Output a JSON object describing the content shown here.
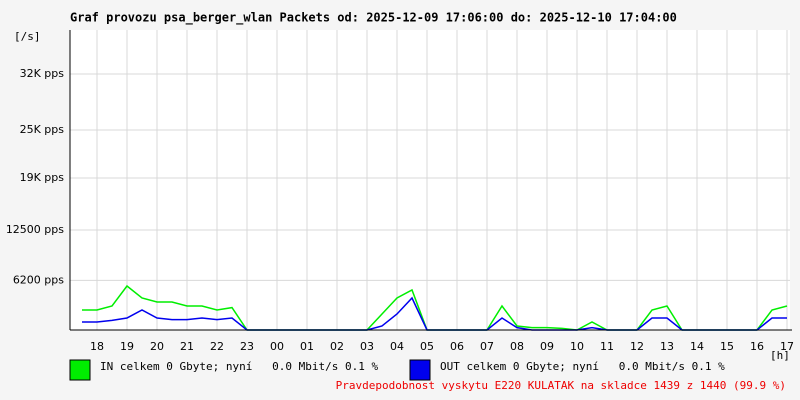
{
  "chart_data": {
    "type": "line",
    "title": "Graf provozu psa_berger_wlan Packets od: 2025-12-09 17:06:00 do: 2025-12-10 17:04:00",
    "y_label": "[/s]",
    "x_label": "[h]",
    "categories": [
      null,
      "18",
      null,
      "19",
      null,
      "20",
      null,
      "21",
      null,
      "22",
      null,
      "23",
      null,
      "00",
      null,
      "01",
      null,
      "02",
      null,
      "03",
      null,
      "04",
      null,
      "05",
      null,
      "06",
      null,
      "07",
      null,
      "08",
      null,
      "09",
      null,
      "10",
      null,
      "11",
      null,
      "12",
      null,
      "13",
      null,
      "14",
      null,
      "15",
      null,
      "16",
      null,
      "17"
    ],
    "series": [
      {
        "name": "IN celkem 0 Gbyte; nyní   0.0 Mbit/s 0.1 %",
        "color": "#00ee00",
        "values": [
          2500,
          2500,
          3000,
          5500,
          4000,
          3500,
          3500,
          3000,
          3000,
          2500,
          2800,
          0,
          0,
          0,
          0,
          0,
          0,
          0,
          0,
          0,
          2000,
          4000,
          5000,
          0,
          0,
          0,
          0,
          0,
          3000,
          500,
          300,
          300,
          200,
          0,
          1000,
          0,
          0,
          0,
          2500,
          3000,
          0,
          0,
          0,
          0,
          0,
          0,
          2500,
          3000
        ]
      },
      {
        "name": "OUT celkem 0 Gbyte; nyní   0.0 Mbit/s 0.1 %",
        "color": "#0000ee",
        "values": [
          1000,
          1000,
          1200,
          1500,
          2500,
          1500,
          1300,
          1300,
          1500,
          1300,
          1500,
          0,
          0,
          0,
          0,
          0,
          0,
          0,
          0,
          0,
          500,
          2000,
          4000,
          0,
          0,
          0,
          0,
          0,
          1500,
          300,
          0,
          0,
          0,
          0,
          300,
          0,
          0,
          0,
          1500,
          1500,
          0,
          0,
          0,
          0,
          0,
          0,
          1500,
          1500
        ]
      }
    ],
    "ylim": [
      0,
      37500
    ],
    "yticks": [
      {
        "value": 6200,
        "label": "6200 pps"
      },
      {
        "value": 12500,
        "label": "12500 pps"
      },
      {
        "value": 19000,
        "label": "19K pps"
      },
      {
        "value": 25000,
        "label": "25K pps"
      },
      {
        "value": 32000,
        "label": "32K pps"
      }
    ],
    "grid": true,
    "note": "Pravdepodobnost vyskytu E220 KULATAK na skladce 1439 z 1440 (99.9 %)",
    "note_color": "#ee0000"
  }
}
